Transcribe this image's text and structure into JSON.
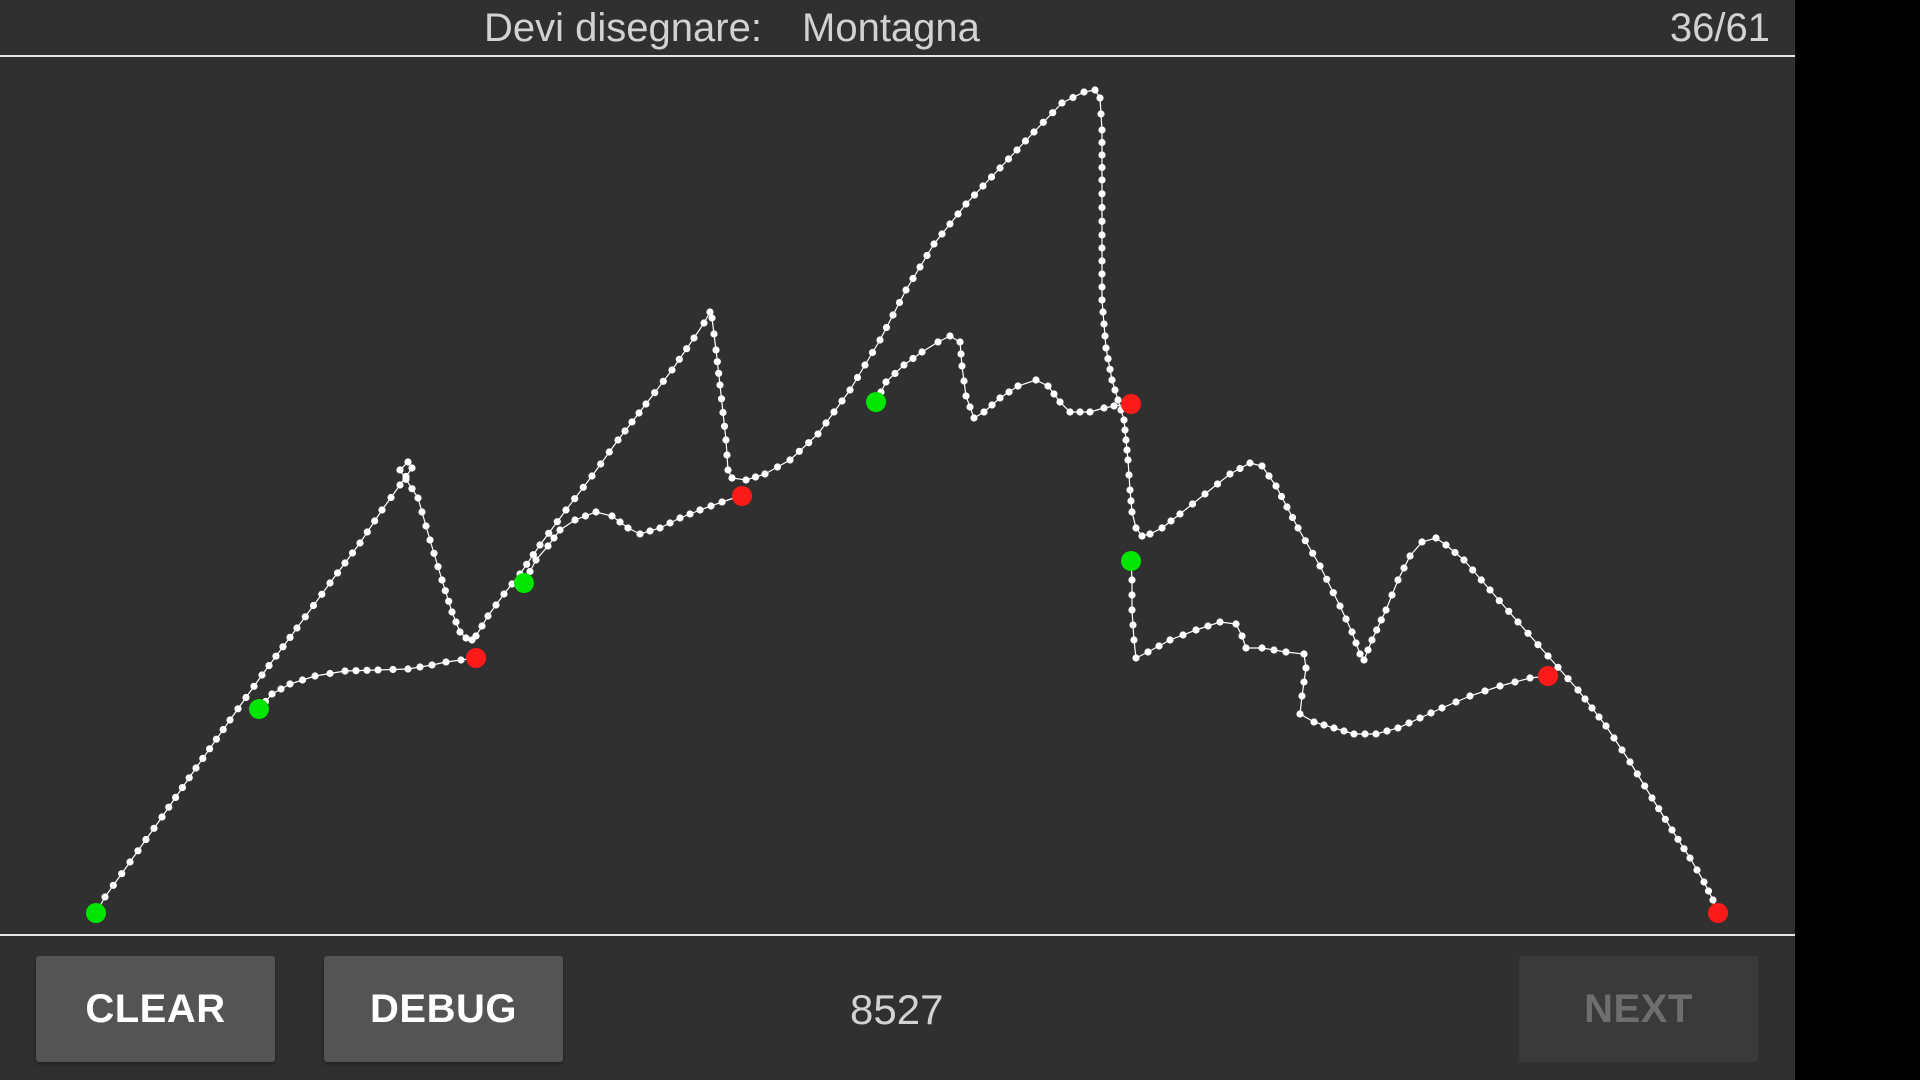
{
  "header": {
    "prompt_label": "Devi disegnare:",
    "prompt_word": "Montagna",
    "counter": "36/61"
  },
  "footer": {
    "clear_label": "CLEAR",
    "debug_label": "DEBUG",
    "score": "8527",
    "next_label": "NEXT"
  },
  "colors": {
    "background": "#303030",
    "stroke": "#ffffff",
    "stroke_start": "#00e600",
    "stroke_end": "#ff1a1a",
    "next_disabled": "#6e6e6e"
  },
  "icons": {
    "stroke_start": "start-dot-icon",
    "stroke_end": "end-dot-icon"
  }
}
